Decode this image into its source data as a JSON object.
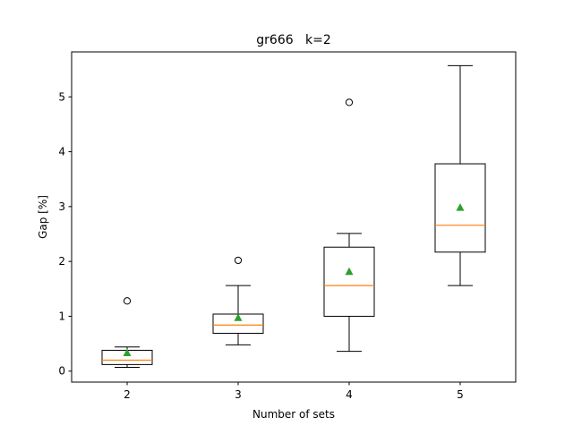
{
  "chart_data": {
    "type": "boxplot",
    "title": "gr666   k=2",
    "xlabel": "Number of sets",
    "ylabel": "Gap [%]",
    "categories": [
      "2",
      "3",
      "4",
      "5"
    ],
    "xlim": [
      1.5,
      5.5
    ],
    "ylim": [
      -0.2,
      5.82
    ],
    "yticks": [
      0,
      1,
      2,
      3,
      4,
      5
    ],
    "boxes": [
      {
        "label": "2",
        "whisker_low": 0.07,
        "q1": 0.12,
        "median": 0.2,
        "q3": 0.38,
        "whisker_high": 0.44,
        "mean": 0.33,
        "outliers": [
          1.28
        ]
      },
      {
        "label": "3",
        "whisker_low": 0.48,
        "q1": 0.69,
        "median": 0.84,
        "q3": 1.04,
        "whisker_high": 1.56,
        "mean": 0.97,
        "outliers": [
          2.02
        ]
      },
      {
        "label": "4",
        "whisker_low": 0.36,
        "q1": 1.0,
        "median": 1.56,
        "q3": 2.26,
        "whisker_high": 2.51,
        "mean": 1.81,
        "outliers": [
          4.9
        ]
      },
      {
        "label": "5",
        "whisker_low": 1.56,
        "q1": 2.17,
        "median": 2.66,
        "q3": 3.78,
        "whisker_high": 5.57,
        "mean": 2.98,
        "outliers": []
      }
    ],
    "colors": {
      "box": "#000000",
      "median": "#ff7f0e",
      "mean": "#2ca02c",
      "outlier": "#000000"
    },
    "grid": false
  }
}
